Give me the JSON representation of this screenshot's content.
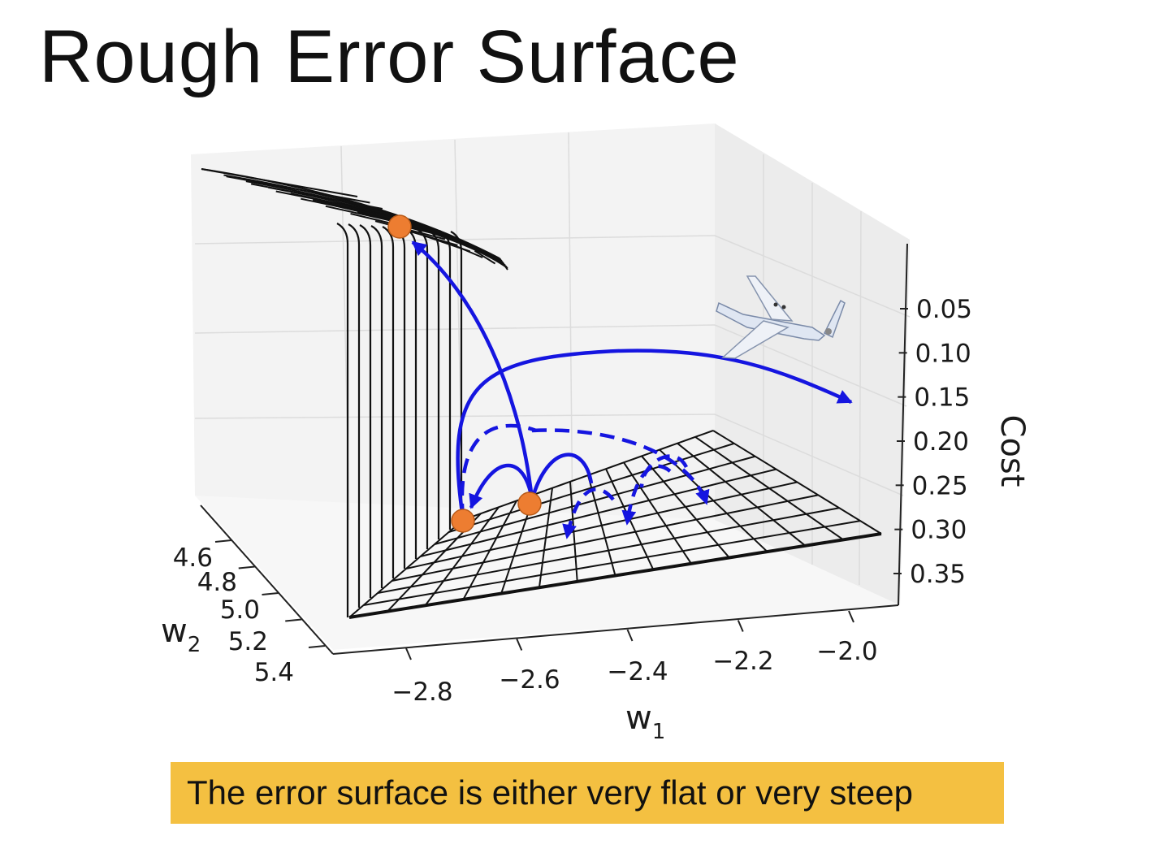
{
  "slide": {
    "title": "Rough Error Surface",
    "caption": "The error surface is either very flat or very steep"
  },
  "chart_data": {
    "type": "surface3d",
    "title": "",
    "x_axis": {
      "label": "w",
      "subscript": "1",
      "ticks": [
        "−2.8",
        "−2.6",
        "−2.4",
        "−2.2",
        "−2.0"
      ]
    },
    "y_axis": {
      "label": "w",
      "subscript": "2",
      "ticks": [
        "4.6",
        "4.8",
        "5.0",
        "5.2",
        "5.4"
      ]
    },
    "z_axis": {
      "label": "Cost",
      "ticks": [
        "0.05",
        "0.10",
        "0.15",
        "0.20",
        "0.25",
        "0.30",
        "0.35"
      ],
      "range": [
        0.05,
        0.35
      ]
    },
    "surface": "steep cliff rising from a flat plain",
    "markers": [
      {
        "name": "point-high",
        "color": "#ed7d31",
        "location": "top of cliff"
      },
      {
        "name": "point-low-left",
        "color": "#ed7d31",
        "location": "base of cliff"
      },
      {
        "name": "point-low-right",
        "color": "#ed7d31",
        "location": "flat plain"
      }
    ],
    "annotation_icon": "airplane-icon",
    "colors": {
      "arrow": "#1515e0",
      "marker": "#ed7d31",
      "mesh": "#111111",
      "caption_bg": "#f4c041"
    },
    "grid": true
  }
}
